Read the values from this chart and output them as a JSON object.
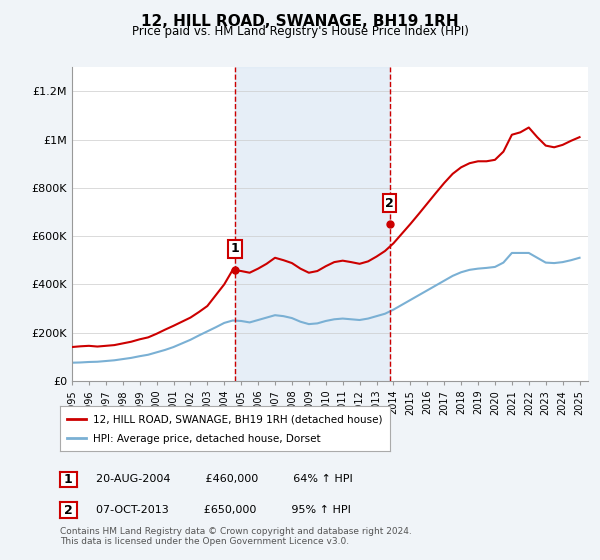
{
  "title": "12, HILL ROAD, SWANAGE, BH19 1RH",
  "subtitle": "Price paid vs. HM Land Registry's House Price Index (HPI)",
  "background_color": "#f0f4f8",
  "plot_bg_color": "#ffffff",
  "hpi_shade_color": "#dce8f5",
  "sale_marker_shade": "#f0dce0",
  "red_line_color": "#cc0000",
  "blue_line_color": "#7ab0d4",
  "marker1_color": "#cc0000",
  "marker2_color": "#cc0000",
  "vline_color": "#cc0000",
  "ylim": [
    0,
    1300000
  ],
  "yticks": [
    0,
    200000,
    400000,
    600000,
    800000,
    1000000,
    1200000
  ],
  "ytick_labels": [
    "£0",
    "£200K",
    "£400K",
    "£600K",
    "£800K",
    "£1M",
    "£1.2M"
  ],
  "sale1_year": 2004.65,
  "sale1_price": 460000,
  "sale2_year": 2013.77,
  "sale2_price": 650000,
  "legend_line1": "12, HILL ROAD, SWANAGE, BH19 1RH (detached house)",
  "legend_line2": "HPI: Average price, detached house, Dorset",
  "table_row1": [
    "1",
    "20-AUG-2004",
    "£460,000",
    "64% ↑ HPI"
  ],
  "table_row2": [
    "2",
    "07-OCT-2013",
    "£650,000",
    "95% ↑ HPI"
  ],
  "footer": "Contains HM Land Registry data © Crown copyright and database right 2024.\nThis data is licensed under the Open Government Licence v3.0.",
  "hpi_x": [
    1995,
    1995.5,
    1996,
    1996.5,
    1997,
    1997.5,
    1998,
    1998.5,
    1999,
    1999.5,
    2000,
    2000.5,
    2001,
    2001.5,
    2002,
    2002.5,
    2003,
    2003.5,
    2004,
    2004.5,
    2005,
    2005.5,
    2006,
    2006.5,
    2007,
    2007.5,
    2008,
    2008.5,
    2009,
    2009.5,
    2010,
    2010.5,
    2011,
    2011.5,
    2012,
    2012.5,
    2013,
    2013.5,
    2014,
    2014.5,
    2015,
    2015.5,
    2016,
    2016.5,
    2017,
    2017.5,
    2018,
    2018.5,
    2019,
    2019.5,
    2020,
    2020.5,
    2021,
    2021.5,
    2022,
    2022.5,
    2023,
    2023.5,
    2024,
    2024.5,
    2025
  ],
  "hpi_y": [
    75000,
    76000,
    78000,
    79000,
    82000,
    85000,
    90000,
    95000,
    102000,
    108000,
    118000,
    128000,
    140000,
    155000,
    170000,
    188000,
    205000,
    222000,
    240000,
    250000,
    248000,
    242000,
    252000,
    262000,
    272000,
    268000,
    260000,
    245000,
    235000,
    238000,
    248000,
    255000,
    258000,
    255000,
    252000,
    258000,
    268000,
    278000,
    295000,
    315000,
    335000,
    355000,
    375000,
    395000,
    415000,
    435000,
    450000,
    460000,
    465000,
    468000,
    472000,
    490000,
    530000,
    530000,
    530000,
    510000,
    490000,
    488000,
    492000,
    500000,
    510000
  ],
  "price_x": [
    1995,
    1995.5,
    1996,
    1996.5,
    1997,
    1997.5,
    1998,
    1998.5,
    1999,
    1999.5,
    2000,
    2000.5,
    2001,
    2001.5,
    2002,
    2002.5,
    2003,
    2003.5,
    2004,
    2004.5,
    2005,
    2005.5,
    2006,
    2006.5,
    2007,
    2007.5,
    2008,
    2008.5,
    2009,
    2009.5,
    2010,
    2010.5,
    2011,
    2011.5,
    2012,
    2012.5,
    2013,
    2013.5,
    2014,
    2014.5,
    2015,
    2015.5,
    2016,
    2016.5,
    2017,
    2017.5,
    2018,
    2018.5,
    2019,
    2019.5,
    2020,
    2020.5,
    2021,
    2021.5,
    2022,
    2022.5,
    2023,
    2023.5,
    2024,
    2024.5,
    2025
  ],
  "price_y": [
    140000,
    143000,
    145000,
    142000,
    145000,
    148000,
    155000,
    162000,
    172000,
    180000,
    195000,
    212000,
    228000,
    245000,
    262000,
    285000,
    310000,
    355000,
    400000,
    460000,
    455000,
    448000,
    465000,
    485000,
    510000,
    500000,
    488000,
    465000,
    448000,
    455000,
    475000,
    492000,
    498000,
    492000,
    485000,
    495000,
    515000,
    538000,
    570000,
    610000,
    650000,
    692000,
    735000,
    778000,
    820000,
    858000,
    885000,
    902000,
    910000,
    910000,
    916000,
    950000,
    1020000,
    1030000,
    1050000,
    1010000,
    975000,
    968000,
    978000,
    995000,
    1010000
  ]
}
